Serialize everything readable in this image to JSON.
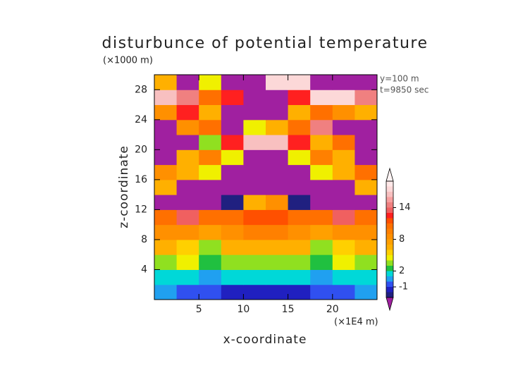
{
  "chart_data": {
    "type": "contourf",
    "title": "disturbunce of potential temperature",
    "y_unit_label": "(×1000 m)",
    "x_unit_label": "(×1E4 m)",
    "annotations": [
      "y=100 m",
      "t=9850 sec"
    ],
    "xlabel": "x-coordinate",
    "ylabel": "z-coordinate",
    "xlim": [
      0,
      25
    ],
    "ylim": [
      0,
      30
    ],
    "xticks": [
      5,
      10,
      15,
      20
    ],
    "yticks": [
      4,
      8,
      12,
      16,
      20,
      24,
      28
    ],
    "x": [
      1.25,
      3.75,
      6.25,
      8.75,
      11.25,
      13.75,
      16.25,
      18.75,
      21.25,
      23.75
    ],
    "y": [
      1,
      3,
      5,
      7,
      9,
      11,
      13,
      15,
      17,
      19,
      21,
      23,
      25,
      27,
      29
    ],
    "z": [
      [
        0,
        -1,
        -1,
        -2,
        -2,
        -2,
        -2,
        -1,
        -1,
        0
      ],
      [
        1,
        1,
        0,
        1,
        1,
        1,
        1,
        0,
        1,
        1
      ],
      [
        3,
        4,
        2,
        3,
        3,
        3,
        3,
        2,
        4,
        3
      ],
      [
        6,
        5,
        3,
        6,
        6,
        6,
        6,
        3,
        5,
        6
      ],
      [
        8,
        8,
        7,
        8,
        9,
        9,
        8,
        7,
        8,
        8
      ],
      [
        10,
        13,
        10,
        10,
        11,
        11,
        10,
        10,
        13,
        10
      ],
      [
        -4,
        -4,
        -4,
        -3,
        6,
        8,
        -3,
        -4,
        -4,
        -4
      ],
      [
        6,
        -4,
        -4,
        -4,
        -4,
        -4,
        -4,
        -4,
        -4,
        6
      ],
      [
        8,
        6,
        4,
        -4,
        -4,
        -4,
        -4,
        4,
        6,
        10
      ],
      [
        -4,
        6,
        9,
        4,
        -4,
        -4,
        4,
        9,
        6,
        -4
      ],
      [
        -4,
        -4,
        3,
        12,
        16,
        16,
        12,
        6,
        10,
        -4
      ],
      [
        -4,
        8,
        10,
        -4,
        4,
        6,
        10,
        14,
        -4,
        -4
      ],
      [
        8,
        12,
        6,
        -4,
        -4,
        -4,
        6,
        10,
        8,
        6
      ],
      [
        16,
        14,
        10,
        12,
        -4,
        -4,
        12,
        17,
        17,
        14
      ],
      [
        6,
        -4,
        4,
        -4,
        -4,
        17,
        17,
        -4,
        -4,
        -4
      ]
    ],
    "levels": [
      -3,
      -2,
      -1,
      0,
      1,
      2,
      3,
      4,
      5,
      6,
      7,
      8,
      9,
      10,
      11,
      12,
      13,
      14,
      15,
      16,
      17,
      18,
      19
    ],
    "colors": [
      "#a020a0",
      "#202080",
      "#2020c0",
      "#3050f0",
      "#20a0f0",
      "#00d8d8",
      "#20c040",
      "#90e020",
      "#f0f000",
      "#ffd000",
      "#ffb000",
      "#ffa000",
      "#ff9000",
      "#ff8000",
      "#ff7000",
      "#ff5000",
      "#ff2020",
      "#f06060",
      "#f08080",
      "#f8a0a0",
      "#f8c0c0",
      "#fcd8d8",
      "#ffe8e8",
      "#fff4f4"
    ],
    "colorbar_ticks": [
      14,
      8,
      2,
      -1
    ]
  }
}
